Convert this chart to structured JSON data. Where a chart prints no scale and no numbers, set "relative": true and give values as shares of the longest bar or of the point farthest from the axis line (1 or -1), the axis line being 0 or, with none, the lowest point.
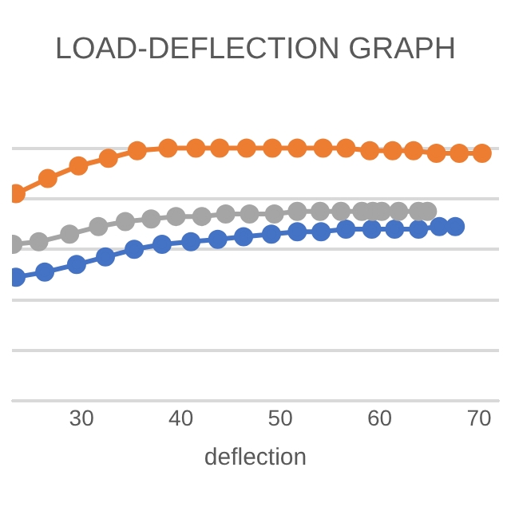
{
  "chart_data": {
    "type": "line",
    "title": "LOAD-DEFLECTION GRAPH",
    "xlabel": "deflection",
    "relative": true,
    "xlim": [
      23,
      72
    ],
    "xticks": [
      30,
      40,
      50,
      60,
      70
    ],
    "grid": "y",
    "legend": false,
    "marker": "circle",
    "line_style": "solid",
    "series": [
      {
        "color": "#ed7d31",
        "x": [
          23.4,
          26.6,
          29.7,
          32.7,
          35.6,
          38.7,
          41.5,
          43.9,
          46.6,
          49.2,
          51.7,
          54.3,
          56.6,
          59.0,
          61.3,
          63.4,
          65.7,
          68.0,
          70.3
        ],
        "values": [
          0.82,
          0.88,
          0.93,
          0.96,
          0.99,
          1,
          1,
          1,
          1,
          1,
          1,
          1,
          1,
          0.99,
          0.99,
          0.99,
          0.98,
          0.98,
          0.98
        ]
      },
      {
        "color": "#a5a5a5",
        "x": [
          23.1,
          25.7,
          28.8,
          31.7,
          34.4,
          37.0,
          39.5,
          42.1,
          44.5,
          46.9,
          49.4,
          51.7,
          54.0,
          56.1,
          58.2,
          59.3,
          60.2,
          61.9,
          63.9,
          64.8
        ],
        "values": [
          0.62,
          0.63,
          0.66,
          0.69,
          0.71,
          0.72,
          0.73,
          0.73,
          0.74,
          0.74,
          0.74,
          0.75,
          0.75,
          0.75,
          0.75,
          0.75,
          0.75,
          0.75,
          0.75,
          0.75
        ]
      },
      {
        "color": "#4472c4",
        "x": [
          23.4,
          26.3,
          29.5,
          32.4,
          35.3,
          38.1,
          41.0,
          43.7,
          46.3,
          49.1,
          51.7,
          54.1,
          56.6,
          59.2,
          61.5,
          63.9,
          66.0,
          67.6
        ],
        "values": [
          0.49,
          0.51,
          0.54,
          0.57,
          0.6,
          0.62,
          0.63,
          0.64,
          0.65,
          0.66,
          0.67,
          0.67,
          0.68,
          0.68,
          0.68,
          0.68,
          0.69,
          0.69
        ]
      }
    ]
  }
}
